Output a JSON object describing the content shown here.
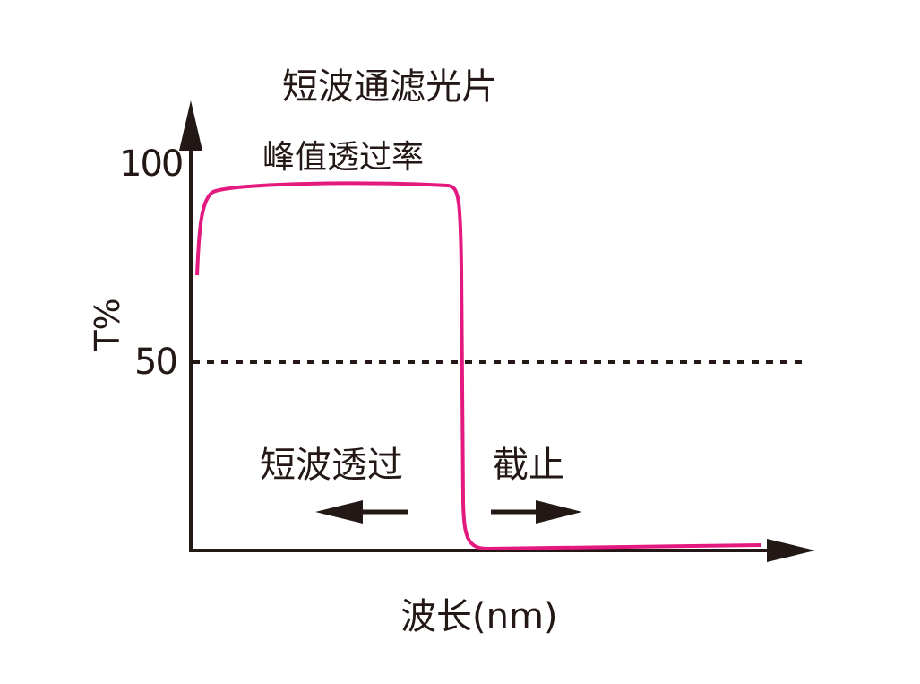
{
  "title": "短波通滤光片",
  "peak_label": "峰值透过率",
  "y_axis": {
    "label": "T%",
    "ticks": [
      "100",
      "50"
    ]
  },
  "x_axis": {
    "label": "波长(nm)"
  },
  "regions": {
    "pass": "短波透过",
    "stop": "截止"
  },
  "colors": {
    "curve": "#e4197f",
    "axis": "#231815"
  }
}
